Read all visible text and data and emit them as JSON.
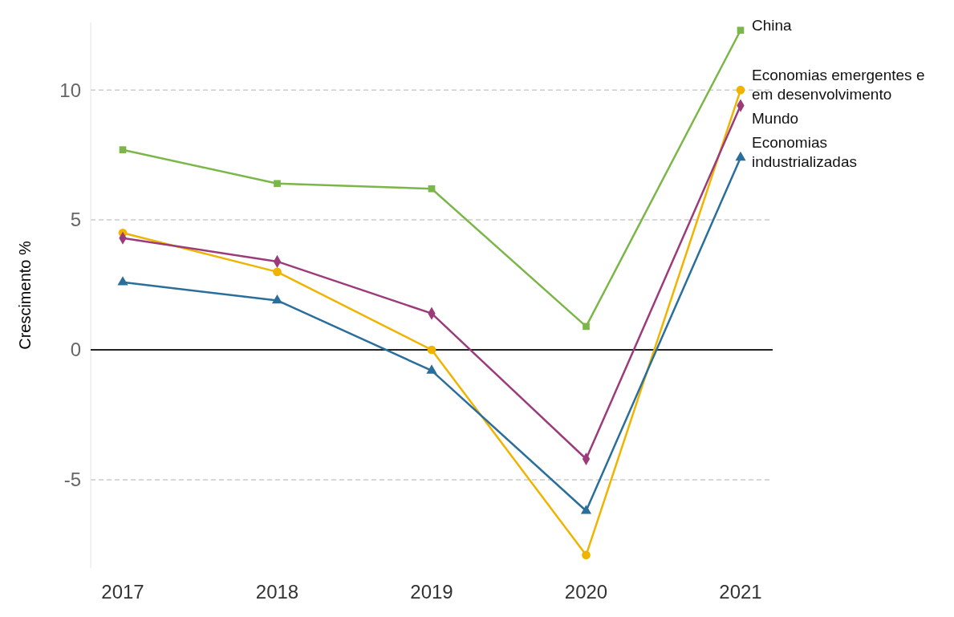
{
  "chart_data": {
    "type": "line",
    "ylabel": "Crescimento %",
    "categories": [
      "2017",
      "2018",
      "2019",
      "2020",
      "2021"
    ],
    "ylim": [
      -8.4,
      12.6
    ],
    "yticks": [
      -5,
      0,
      5,
      10
    ],
    "grid": "y",
    "ref_lines": [
      {
        "axis": "y",
        "value": 0,
        "color": "#222222",
        "line_style": "solid"
      }
    ],
    "series": [
      {
        "name": "China",
        "color": "#7ab648",
        "marker": "square",
        "values": [
          7.7,
          6.4,
          6.2,
          0.9,
          12.3
        ]
      },
      {
        "name": "Economias emergentes e em desenvolvimento",
        "color": "#f0b400",
        "marker": "circle",
        "values": [
          4.5,
          3.0,
          0,
          -7.9,
          10.0
        ]
      },
      {
        "name": "Mundo",
        "color": "#9b3b7a",
        "marker": "diamond",
        "values": [
          4.3,
          3.4,
          1.4,
          -4.2,
          9.4
        ]
      },
      {
        "name": "Economias industrializadas",
        "color": "#2a6f9b",
        "marker": "triangle",
        "values": [
          2.6,
          1.9,
          -0.8,
          -6.2,
          7.4
        ]
      }
    ]
  }
}
